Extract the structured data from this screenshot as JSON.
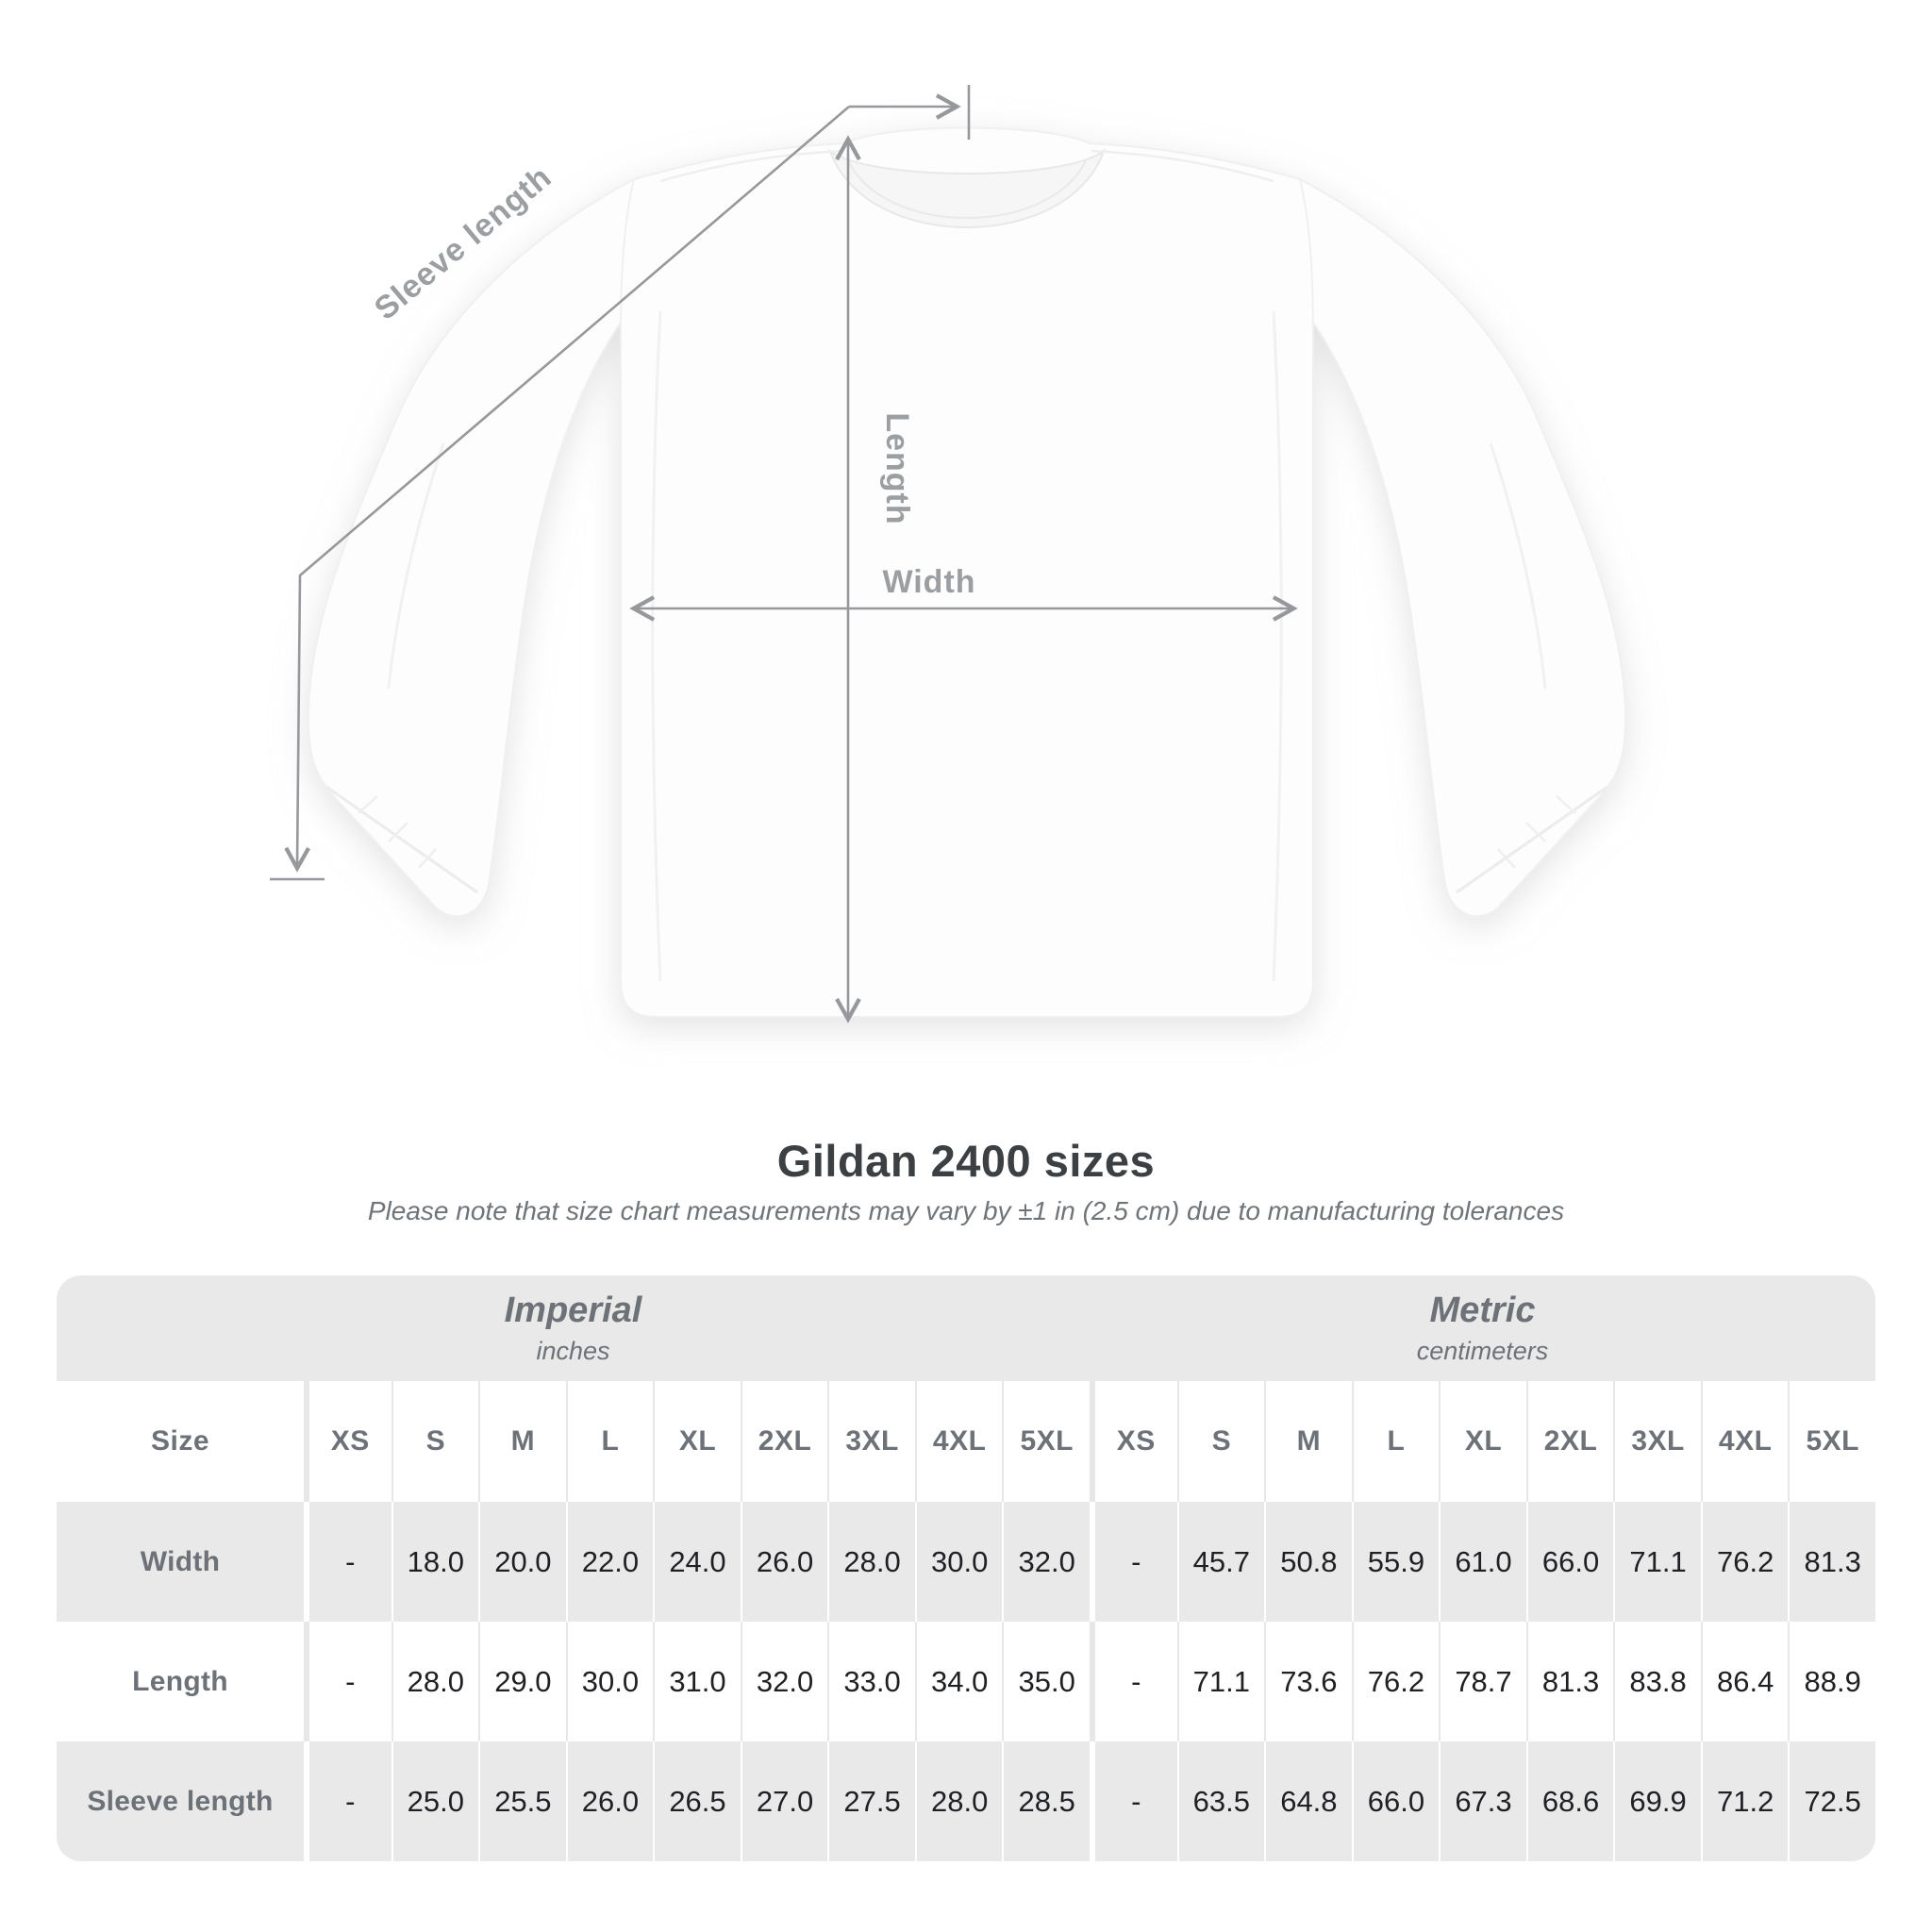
{
  "title": "Gildan 2400 sizes",
  "subtitle": "Please note that size chart measurements may vary by ±1 in (2.5 cm) due to manufacturing tolerances",
  "diagram": {
    "labels": {
      "sleeve_length": "Sleeve length",
      "length": "Length",
      "width": "Width"
    },
    "line_color": "#96989b",
    "label_color": "#9b9fa2",
    "shirt_color": "#fdfdfd"
  },
  "table": {
    "size_label": "Size",
    "unit_groups": [
      {
        "name": "Imperial",
        "unit": "inches"
      },
      {
        "name": "Metric",
        "unit": "centimeters"
      }
    ],
    "sizes": [
      "XS",
      "S",
      "M",
      "L",
      "XL",
      "2XL",
      "3XL",
      "4XL",
      "5XL"
    ],
    "rows": [
      {
        "label": "Width",
        "imperial": [
          "-",
          "18.0",
          "20.0",
          "22.0",
          "24.0",
          "26.0",
          "28.0",
          "30.0",
          "32.0"
        ],
        "metric": [
          "-",
          "45.7",
          "50.8",
          "55.9",
          "61.0",
          "66.0",
          "71.1",
          "76.2",
          "81.3"
        ]
      },
      {
        "label": "Length",
        "imperial": [
          "-",
          "28.0",
          "29.0",
          "30.0",
          "31.0",
          "32.0",
          "33.0",
          "34.0",
          "35.0"
        ],
        "metric": [
          "-",
          "71.1",
          "73.6",
          "76.2",
          "78.7",
          "81.3",
          "83.8",
          "86.4",
          "88.9"
        ]
      },
      {
        "label": "Sleeve length",
        "imperial": [
          "-",
          "25.0",
          "25.5",
          "26.0",
          "26.5",
          "27.0",
          "27.5",
          "28.0",
          "28.5"
        ],
        "metric": [
          "-",
          "63.5",
          "64.8",
          "66.0",
          "67.3",
          "68.6",
          "69.9",
          "71.2",
          "72.5"
        ]
      }
    ],
    "colors": {
      "stripe_gray": "#e9e9e9",
      "header_text": "#6d7278",
      "value_text": "#1f2023"
    }
  },
  "chart_data": {
    "type": "table",
    "title": "Gildan 2400 sizes",
    "note": "Size chart measurements may vary by ±1 in (2.5 cm) due to manufacturing tolerances",
    "measurements": [
      "Width",
      "Length",
      "Sleeve length"
    ],
    "sizes": [
      "XS",
      "S",
      "M",
      "L",
      "XL",
      "2XL",
      "3XL",
      "4XL",
      "5XL"
    ],
    "imperial_inches": {
      "Width": [
        null,
        18.0,
        20.0,
        22.0,
        24.0,
        26.0,
        28.0,
        30.0,
        32.0
      ],
      "Length": [
        null,
        28.0,
        29.0,
        30.0,
        31.0,
        32.0,
        33.0,
        34.0,
        35.0
      ],
      "Sleeve length": [
        null,
        25.0,
        25.5,
        26.0,
        26.5,
        27.0,
        27.5,
        28.0,
        28.5
      ]
    },
    "metric_centimeters": {
      "Width": [
        null,
        45.7,
        50.8,
        55.9,
        61.0,
        66.0,
        71.1,
        76.2,
        81.3
      ],
      "Length": [
        null,
        71.1,
        73.6,
        76.2,
        78.7,
        81.3,
        83.8,
        86.4,
        88.9
      ],
      "Sleeve length": [
        null,
        63.5,
        64.8,
        66.0,
        67.3,
        68.6,
        69.9,
        71.2,
        72.5
      ]
    }
  }
}
